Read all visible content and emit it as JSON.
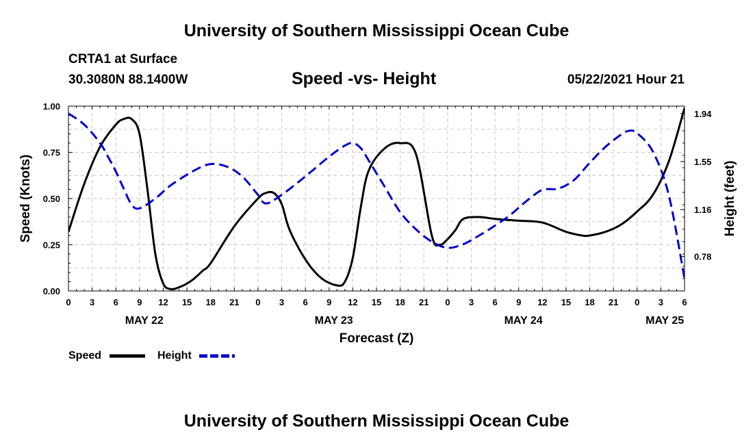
{
  "header": {
    "title": "University of Southern Mississippi Ocean Cube",
    "station": "CRTA1 at Surface",
    "location": "30.3080N  88.1400W",
    "datetime": "05/22/2021 Hour 21",
    "footer_title": "University of Southern Mississippi Ocean Cube"
  },
  "chart_data": {
    "type": "line",
    "title": "Speed -vs- Height",
    "xlabel": "Forecast (Z)",
    "ylabel_left": "Speed (Knots)",
    "ylabel_right": "Height (feet)",
    "xlim_hours": [
      0,
      78
    ],
    "ylim_left": [
      0,
      1
    ],
    "ylim_right": [
      0.5,
      2.0
    ],
    "x_ticks": [
      {
        "h": 0,
        "label": "0"
      },
      {
        "h": 3,
        "label": "3"
      },
      {
        "h": 6,
        "label": "6"
      },
      {
        "h": 9,
        "label": "9"
      },
      {
        "h": 12,
        "label": "12"
      },
      {
        "h": 15,
        "label": "15"
      },
      {
        "h": 18,
        "label": "18"
      },
      {
        "h": 21,
        "label": "21"
      },
      {
        "h": 24,
        "label": "0"
      },
      {
        "h": 27,
        "label": "3"
      },
      {
        "h": 30,
        "label": "6"
      },
      {
        "h": 33,
        "label": "9"
      },
      {
        "h": 36,
        "label": "12"
      },
      {
        "h": 39,
        "label": "15"
      },
      {
        "h": 42,
        "label": "18"
      },
      {
        "h": 45,
        "label": "21"
      },
      {
        "h": 48,
        "label": "0"
      },
      {
        "h": 51,
        "label": "3"
      },
      {
        "h": 54,
        "label": "6"
      },
      {
        "h": 57,
        "label": "9"
      },
      {
        "h": 60,
        "label": "12"
      },
      {
        "h": 63,
        "label": "15"
      },
      {
        "h": 66,
        "label": "18"
      },
      {
        "h": 69,
        "label": "21"
      },
      {
        "h": 72,
        "label": "0"
      },
      {
        "h": 75,
        "label": "3"
      },
      {
        "h": 78,
        "label": "6"
      }
    ],
    "day_labels": [
      {
        "h": 9.6,
        "label": "MAY 22"
      },
      {
        "h": 33.6,
        "label": "MAY 23"
      },
      {
        "h": 57.6,
        "label": "MAY 24"
      },
      {
        "h": 75.5,
        "label": "MAY 25"
      }
    ],
    "y_ticks_left": [
      {
        "v": 0,
        "label": "0.00"
      },
      {
        "v": 0.25,
        "label": "0.25"
      },
      {
        "v": 0.5,
        "label": "0.50"
      },
      {
        "v": 0.75,
        "label": "0.75"
      },
      {
        "v": 1.0,
        "label": "1.00"
      }
    ],
    "y_ticks_right": [
      {
        "v": 0.78,
        "label": "0.78"
      },
      {
        "v": 1.16,
        "label": "1.16"
      },
      {
        "v": 1.55,
        "label": "1.55"
      },
      {
        "v": 1.94,
        "label": "1.94"
      }
    ],
    "series": [
      {
        "name": "Speed",
        "axis": "left",
        "color": "#000000",
        "dash": "",
        "x": [
          0,
          2,
          4,
          6,
          7,
          8,
          9,
          10,
          11,
          12,
          13,
          14,
          15,
          16,
          17,
          18,
          21,
          24,
          25,
          26,
          27,
          28,
          30,
          32,
          34,
          35,
          36,
          37,
          38,
          40,
          42,
          44,
          46,
          47,
          48,
          49,
          50,
          52,
          54,
          57,
          60,
          63,
          65,
          66,
          68,
          70,
          72,
          74,
          76,
          78
        ],
        "y": [
          0.32,
          0.58,
          0.78,
          0.9,
          0.93,
          0.93,
          0.85,
          0.55,
          0.2,
          0.04,
          0.01,
          0.02,
          0.04,
          0.07,
          0.11,
          0.15,
          0.35,
          0.5,
          0.53,
          0.53,
          0.47,
          0.33,
          0.17,
          0.07,
          0.03,
          0.05,
          0.18,
          0.45,
          0.65,
          0.77,
          0.8,
          0.74,
          0.3,
          0.25,
          0.28,
          0.33,
          0.39,
          0.4,
          0.39,
          0.38,
          0.37,
          0.32,
          0.3,
          0.3,
          0.32,
          0.36,
          0.43,
          0.52,
          0.7,
          0.99
        ]
      },
      {
        "name": "Height",
        "axis": "right",
        "color": "#0000cc",
        "dash": "14,7",
        "x": [
          0,
          2,
          4,
          5,
          6,
          7,
          8,
          9,
          11,
          13,
          16,
          18,
          20,
          22,
          24,
          25,
          27,
          30,
          33,
          35,
          36,
          37,
          38,
          40,
          42,
          44,
          46,
          48,
          50,
          52,
          54,
          56,
          58,
          60,
          62,
          64,
          66,
          68,
          70,
          71,
          72,
          74,
          76,
          78
        ],
        "y": [
          1.94,
          1.85,
          1.7,
          1.59,
          1.47,
          1.33,
          1.2,
          1.17,
          1.25,
          1.36,
          1.48,
          1.53,
          1.51,
          1.43,
          1.28,
          1.21,
          1.28,
          1.43,
          1.59,
          1.68,
          1.7,
          1.66,
          1.56,
          1.35,
          1.14,
          1.0,
          0.9,
          0.85,
          0.88,
          0.95,
          1.03,
          1.12,
          1.23,
          1.32,
          1.33,
          1.4,
          1.54,
          1.67,
          1.77,
          1.8,
          1.78,
          1.63,
          1.28,
          0.6
        ]
      }
    ],
    "legend": [
      {
        "label": "Speed",
        "color": "#000000",
        "dash": ""
      },
      {
        "label": "Height",
        "color": "#0000cc",
        "dash": "14,7"
      }
    ]
  }
}
